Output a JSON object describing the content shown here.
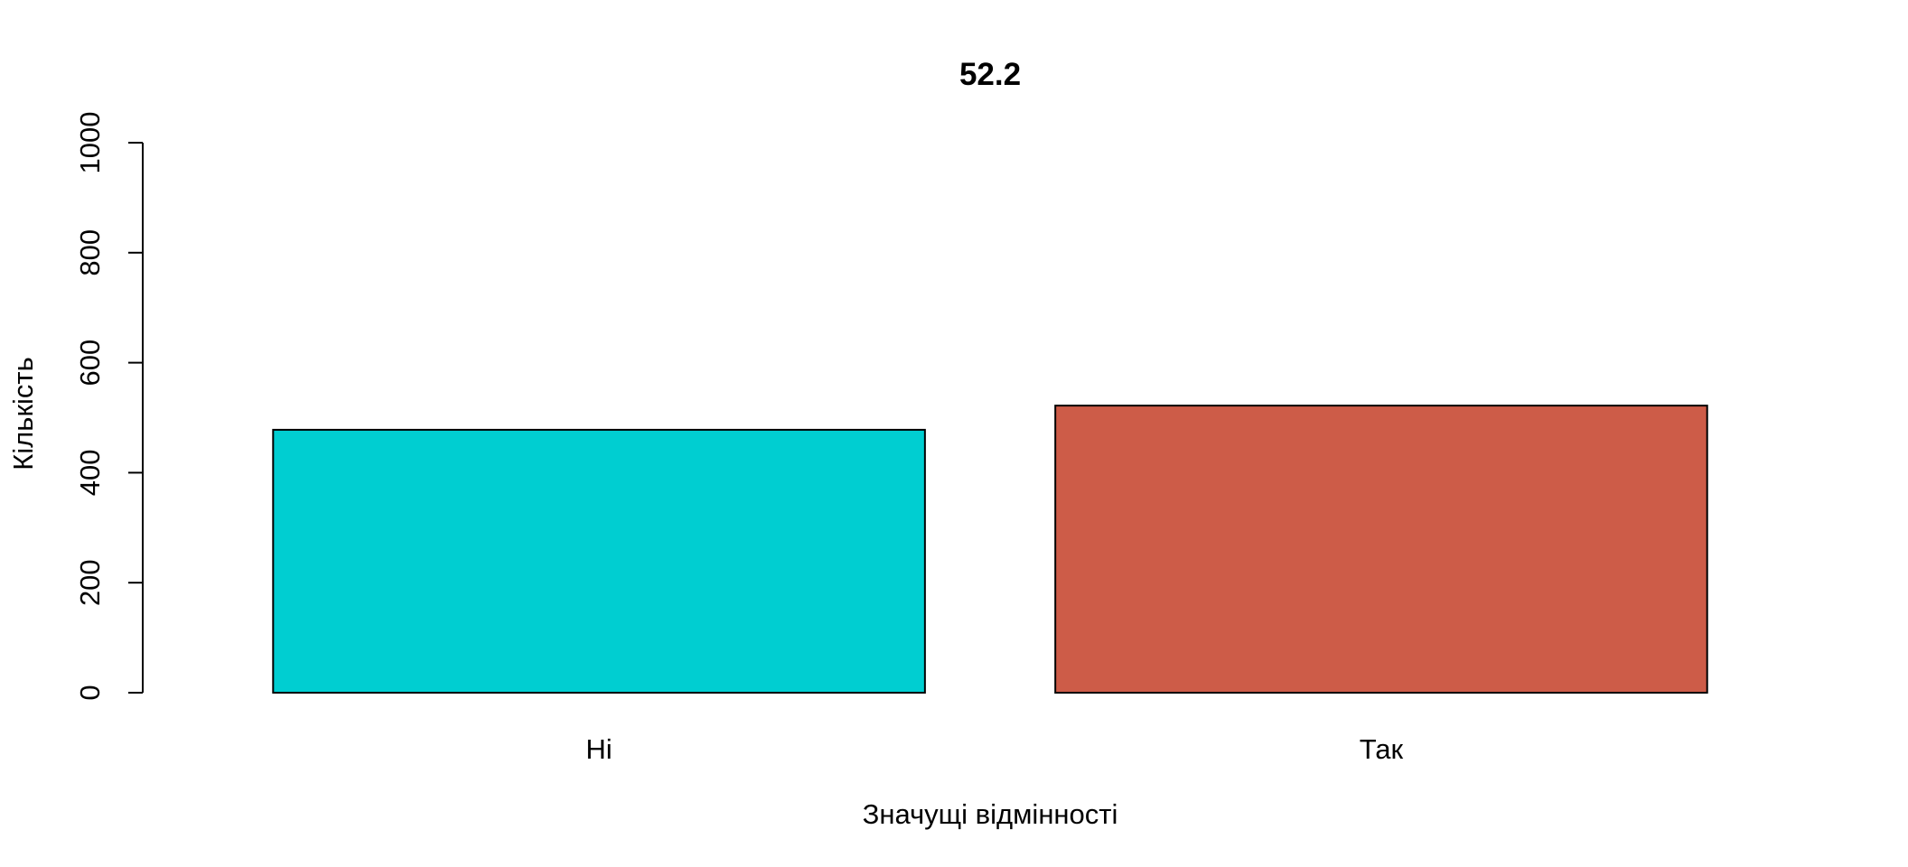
{
  "chart_data": {
    "type": "bar",
    "title": "52.2",
    "xlabel": "Значущі відмінності",
    "ylabel": "Кількість",
    "categories": [
      "Ні",
      "Так"
    ],
    "values": [
      478,
      522
    ],
    "colors": [
      "#00CED1",
      "#CD5C48"
    ],
    "ylim": [
      0,
      1000
    ],
    "yticks": [
      0,
      200,
      400,
      600,
      800,
      1000
    ],
    "grid": false,
    "legend": "none"
  }
}
